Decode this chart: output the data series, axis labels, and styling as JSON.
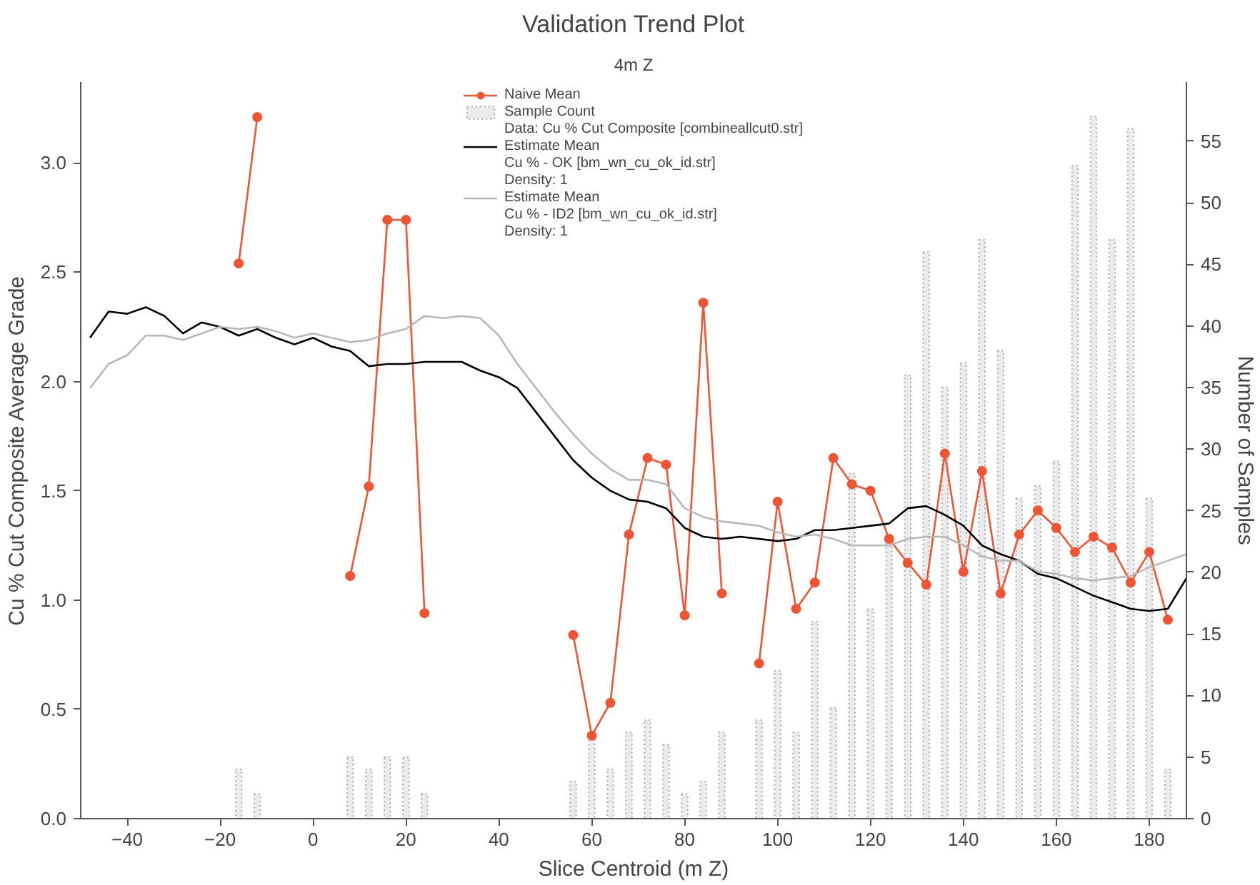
{
  "chart_data": {
    "type": "line",
    "title": "Validation Trend Plot",
    "subtitle": "4m Z",
    "xlabel": "Slice Centroid (m Z)",
    "ylabel": "Cu % Cut Composite Average Grade",
    "y2label": "Number of Samples",
    "xlim": [
      -50,
      188
    ],
    "xticks": [
      -40,
      -20,
      0,
      20,
      40,
      60,
      80,
      100,
      120,
      140,
      160,
      180
    ],
    "ylim": [
      0,
      3.37
    ],
    "yticks": [
      {
        "value": 0,
        "label": "0.0"
      },
      0.5,
      {
        "value": 1,
        "label": "1.0"
      },
      1.5,
      {
        "value": 2,
        "label": "2.0"
      },
      2.5,
      {
        "value": 3,
        "label": "3.0"
      }
    ],
    "y2lim": [
      0,
      59.8
    ],
    "y2ticks": [
      0,
      5,
      10,
      15,
      20,
      25,
      30,
      35,
      40,
      45,
      50,
      55
    ],
    "grid": false,
    "legend": "top",
    "annotations": [
      "Data: Cu % Cut Composite [combineallcut0.str]",
      "Cu % - OK [bm_wn_cu_ok_id.str]",
      "Density: 1",
      "Cu % - ID2 [bm_wn_cu_ok_id.str]",
      "Density: 1"
    ],
    "series": [
      {
        "name": "Naive Mean",
        "marker": "circle",
        "color": "#ee5535",
        "x": [
          -16,
          -12,
          -8,
          -4,
          0,
          4,
          8,
          12,
          16,
          20,
          24,
          28,
          32,
          36,
          40,
          44,
          48,
          52,
          56,
          60,
          64,
          68,
          72,
          76,
          80,
          84,
          88,
          92,
          96,
          100,
          104,
          108,
          112,
          116,
          120,
          124,
          128,
          132,
          136,
          140,
          144,
          148,
          152,
          156,
          160,
          164,
          168,
          172,
          176,
          180,
          184
        ],
        "values": [
          2.54,
          3.21,
          null,
          null,
          null,
          null,
          1.11,
          1.52,
          2.74,
          2.74,
          0.94,
          null,
          null,
          null,
          null,
          null,
          null,
          null,
          0.84,
          0.38,
          0.53,
          1.3,
          1.65,
          1.62,
          0.93,
          2.36,
          1.03,
          null,
          0.71,
          1.45,
          0.96,
          1.08,
          1.65,
          1.53,
          1.5,
          1.28,
          1.17,
          1.07,
          1.67,
          1.13,
          1.59,
          1.03,
          1.3,
          1.41,
          1.33,
          1.22,
          1.29,
          1.24,
          1.08,
          1.22,
          0.91
        ]
      },
      {
        "name": "Sample Count",
        "type": "bar",
        "axis": "y2",
        "color": "#ebebeb",
        "x": [
          -16,
          -12,
          -8,
          -4,
          0,
          4,
          8,
          12,
          16,
          20,
          24,
          28,
          32,
          36,
          40,
          44,
          48,
          52,
          56,
          60,
          64,
          68,
          72,
          76,
          80,
          84,
          88,
          92,
          96,
          100,
          104,
          108,
          112,
          116,
          120,
          124,
          128,
          132,
          136,
          140,
          144,
          148,
          152,
          156,
          160,
          164,
          168,
          172,
          176,
          180,
          184
        ],
        "values": [
          4,
          2,
          null,
          null,
          null,
          null,
          5,
          4,
          5,
          5,
          2,
          null,
          null,
          null,
          null,
          null,
          null,
          null,
          3,
          7,
          4,
          7,
          8,
          6,
          2,
          3,
          7,
          null,
          8,
          12,
          7,
          16,
          9,
          28,
          17,
          23,
          36,
          46,
          35,
          37,
          47,
          38,
          26,
          27,
          29,
          53,
          57,
          47,
          56,
          26,
          4
        ]
      },
      {
        "name": "Estimate Mean",
        "color": "#000000",
        "x": [
          -48,
          -44,
          -40,
          -36,
          -32,
          -28,
          -24,
          -20,
          -16,
          -12,
          -8,
          -4,
          0,
          4,
          8,
          12,
          16,
          20,
          24,
          28,
          32,
          36,
          40,
          44,
          48,
          52,
          56,
          60,
          64,
          68,
          72,
          76,
          80,
          84,
          88,
          92,
          96,
          100,
          104,
          108,
          112,
          116,
          120,
          124,
          128,
          132,
          136,
          140,
          144,
          148,
          152,
          156,
          160,
          164,
          168,
          172,
          176,
          180,
          184,
          188
        ],
        "values": [
          2.2,
          2.32,
          2.31,
          2.34,
          2.3,
          2.22,
          2.27,
          2.25,
          2.21,
          2.24,
          2.2,
          2.17,
          2.2,
          2.16,
          2.14,
          2.07,
          2.08,
          2.08,
          2.09,
          2.09,
          2.09,
          2.05,
          2.02,
          1.97,
          1.86,
          1.75,
          1.64,
          1.56,
          1.5,
          1.46,
          1.45,
          1.42,
          1.33,
          1.29,
          1.28,
          1.29,
          1.28,
          1.27,
          1.28,
          1.32,
          1.32,
          1.33,
          1.34,
          1.35,
          1.42,
          1.43,
          1.39,
          1.34,
          1.25,
          1.21,
          1.18,
          1.12,
          1.1,
          1.06,
          1.02,
          0.99,
          0.96,
          0.95,
          0.96,
          1.1
        ]
      },
      {
        "name": "Estimate Mean",
        "color": "#b8b8b8",
        "x": [
          -48,
          -44,
          -40,
          -36,
          -32,
          -28,
          -24,
          -20,
          -16,
          -12,
          -8,
          -4,
          0,
          4,
          8,
          12,
          16,
          20,
          24,
          28,
          32,
          36,
          40,
          44,
          48,
          52,
          56,
          60,
          64,
          68,
          72,
          76,
          80,
          84,
          88,
          92,
          96,
          100,
          104,
          108,
          112,
          116,
          120,
          124,
          128,
          132,
          136,
          140,
          144,
          148,
          152,
          156,
          160,
          164,
          168,
          172,
          176,
          180,
          184,
          188
        ],
        "values": [
          1.97,
          2.08,
          2.12,
          2.21,
          2.21,
          2.19,
          2.22,
          2.25,
          2.24,
          2.25,
          2.23,
          2.2,
          2.22,
          2.2,
          2.18,
          2.19,
          2.22,
          2.24,
          2.3,
          2.29,
          2.3,
          2.29,
          2.21,
          2.08,
          1.97,
          1.86,
          1.76,
          1.67,
          1.6,
          1.55,
          1.55,
          1.53,
          1.42,
          1.38,
          1.36,
          1.35,
          1.34,
          1.31,
          1.29,
          1.3,
          1.28,
          1.25,
          1.25,
          1.25,
          1.28,
          1.29,
          1.29,
          1.25,
          1.2,
          1.18,
          1.18,
          1.13,
          1.12,
          1.1,
          1.09,
          1.1,
          1.11,
          1.15,
          1.18,
          1.21
        ]
      }
    ]
  }
}
